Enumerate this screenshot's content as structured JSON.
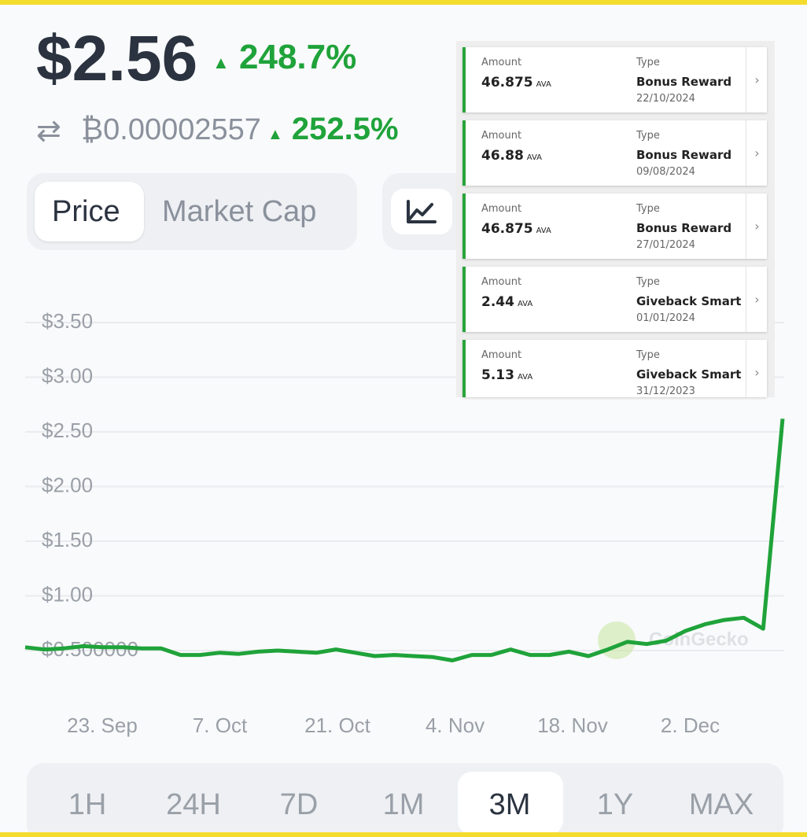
{
  "header": {
    "price": "$2.56",
    "price_change": "248.7%",
    "btc_price": "₿0.00002557",
    "btc_change": "252.5%"
  },
  "tabs": [
    "Price",
    "Market Cap"
  ],
  "transactions": [
    {
      "amount_label": "Amount",
      "amount": "46.875",
      "unit": "AVA",
      "type_label": "Type",
      "type": "Bonus Reward",
      "date": "22/10/2024"
    },
    {
      "amount_label": "Amount",
      "amount": "46.88",
      "unit": "AVA",
      "type_label": "Type",
      "type": "Bonus Reward",
      "date": "09/08/2024"
    },
    {
      "amount_label": "Amount",
      "amount": "46.875",
      "unit": "AVA",
      "type_label": "Type",
      "type": "Bonus Reward",
      "date": "27/01/2024"
    },
    {
      "amount_label": "Amount",
      "amount": "2.44",
      "unit": "AVA",
      "type_label": "Type",
      "type": "Giveback Smart",
      "date": "01/01/2024"
    },
    {
      "amount_label": "Amount",
      "amount": "5.13",
      "unit": "AVA",
      "type_label": "Type",
      "type": "Giveback Smart",
      "date": "31/12/2023"
    }
  ],
  "chart_data": {
    "type": "line",
    "color": "#1fa33a",
    "grid": true,
    "watermark": "CoinGecko",
    "x_labels": [
      "23. Sep",
      "7. Oct",
      "21. Oct",
      "4. Nov",
      "18. Nov",
      "2. Dec"
    ],
    "values": [
      0.53,
      0.51,
      0.52,
      0.54,
      0.53,
      0.53,
      0.52,
      0.52,
      0.46,
      0.46,
      0.48,
      0.47,
      0.49,
      0.5,
      0.49,
      0.48,
      0.51,
      0.48,
      0.45,
      0.46,
      0.45,
      0.44,
      0.41,
      0.46,
      0.46,
      0.51,
      0.46,
      0.46,
      0.49,
      0.45,
      0.51,
      0.58,
      0.56,
      0.59,
      0.68,
      0.74,
      0.78,
      0.8,
      0.7,
      2.62
    ],
    "ylim": [
      0.35,
      3.75
    ],
    "yticks": [
      {
        "value": 0.5,
        "label": "$0.500000"
      },
      {
        "value": 1,
        "label": "$1.00"
      },
      {
        "value": 1.5,
        "label": "$1.50"
      },
      {
        "value": 2,
        "label": "$2.00"
      },
      {
        "value": 2.5,
        "label": "$2.50"
      },
      {
        "value": 3,
        "label": "$3.00"
      },
      {
        "value": 3.5,
        "label": "$3.50"
      }
    ]
  },
  "timeframes": [
    "1H",
    "24H",
    "7D",
    "1M",
    "3M",
    "1Y",
    "MAX"
  ],
  "selected_timeframe": "3M"
}
